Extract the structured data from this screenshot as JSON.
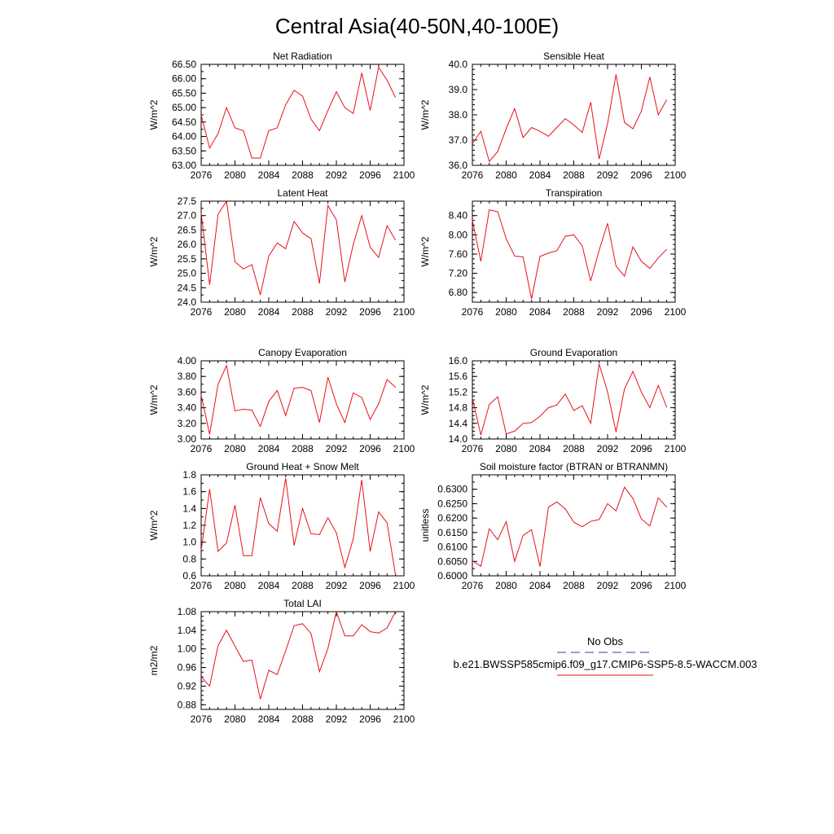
{
  "title": "Central Asia(40-50N,40-100E)",
  "legend": {
    "obs_label": "No Obs",
    "model_label": "b.e21.BWSSP585cmip6.f09_g17.CMIP6-SSP5-8.5-WACCM.003",
    "obs_color": "#3a3aa0",
    "model_color": "#e8101a"
  },
  "chart_data": [
    {
      "type": "line",
      "title": "Net Radiation",
      "ylabel": "W/m^2",
      "xlim": [
        2076,
        2100
      ],
      "ylim": [
        63.0,
        66.5
      ],
      "x_ticks": [
        2076,
        2080,
        2084,
        2088,
        2092,
        2096,
        2100
      ],
      "y_ticks": [
        63.0,
        63.5,
        64.0,
        64.5,
        65.0,
        65.5,
        66.0,
        66.5
      ],
      "y_tick_labels": [
        "63.00",
        "63.50",
        "64.00",
        "64.50",
        "65.00",
        "65.50",
        "66.00",
        "66.50"
      ],
      "y_minor_step": 0.25,
      "x": [
        2076,
        2077,
        2078,
        2079,
        2080,
        2081,
        2082,
        2083,
        2084,
        2085,
        2086,
        2087,
        2088,
        2089,
        2090,
        2091,
        2092,
        2093,
        2094,
        2095,
        2096,
        2097,
        2098,
        2099
      ],
      "values": [
        64.75,
        63.6,
        64.1,
        65.0,
        64.3,
        64.2,
        63.25,
        63.25,
        64.2,
        64.3,
        65.1,
        65.6,
        65.4,
        64.6,
        64.2,
        64.9,
        65.55,
        65.0,
        64.8,
        66.2,
        64.9,
        66.4,
        65.95,
        65.35
      ]
    },
    {
      "type": "line",
      "title": "Sensible Heat",
      "ylabel": "W/m^2",
      "xlim": [
        2076,
        2100
      ],
      "ylim": [
        36.0,
        40.0
      ],
      "x_ticks": [
        2076,
        2080,
        2084,
        2088,
        2092,
        2096,
        2100
      ],
      "y_ticks": [
        36.0,
        37.0,
        38.0,
        39.0,
        40.0
      ],
      "y_tick_labels": [
        "36.0",
        "37.0",
        "38.0",
        "39.0",
        "40.0"
      ],
      "y_minor_step": 0.2,
      "x": [
        2076,
        2077,
        2078,
        2079,
        2080,
        2081,
        2082,
        2083,
        2084,
        2085,
        2086,
        2087,
        2088,
        2089,
        2090,
        2091,
        2092,
        2093,
        2094,
        2095,
        2096,
        2097,
        2098,
        2099
      ],
      "values": [
        36.85,
        37.35,
        36.15,
        36.55,
        37.45,
        38.25,
        37.1,
        37.5,
        37.35,
        37.15,
        37.5,
        37.85,
        37.6,
        37.3,
        38.5,
        36.25,
        37.65,
        39.6,
        37.7,
        37.45,
        38.15,
        39.5,
        38.0,
        38.6
      ]
    },
    {
      "type": "line",
      "title": "Latent Heat",
      "ylabel": "W/m^2",
      "xlim": [
        2076,
        2100
      ],
      "ylim": [
        24.0,
        27.5
      ],
      "x_ticks": [
        2076,
        2080,
        2084,
        2088,
        2092,
        2096,
        2100
      ],
      "y_ticks": [
        24.0,
        24.5,
        25.0,
        25.5,
        26.0,
        26.5,
        27.0,
        27.5
      ],
      "y_tick_labels": [
        "24.0",
        "24.5",
        "25.0",
        "25.5",
        "26.0",
        "26.5",
        "27.0",
        "27.5"
      ],
      "y_minor_step": 0.25,
      "x": [
        2076,
        2077,
        2078,
        2079,
        2080,
        2081,
        2082,
        2083,
        2084,
        2085,
        2086,
        2087,
        2088,
        2089,
        2090,
        2091,
        2092,
        2093,
        2094,
        2095,
        2096,
        2097,
        2098,
        2099
      ],
      "values": [
        27.1,
        24.6,
        27.05,
        27.5,
        25.4,
        25.15,
        25.3,
        24.25,
        25.6,
        26.05,
        25.85,
        26.8,
        26.4,
        26.2,
        24.65,
        27.35,
        26.85,
        24.7,
        26.0,
        27.0,
        25.9,
        25.55,
        26.65,
        26.15
      ]
    },
    {
      "type": "line",
      "title": "Transpiration",
      "ylabel": "W/m^2",
      "xlim": [
        2076,
        2100
      ],
      "ylim": [
        6.6,
        8.7
      ],
      "x_ticks": [
        2076,
        2080,
        2084,
        2088,
        2092,
        2096,
        2100
      ],
      "y_ticks": [
        6.8,
        7.2,
        7.6,
        8.0,
        8.4
      ],
      "y_tick_labels": [
        "6.80",
        "7.20",
        "7.60",
        "8.00",
        "8.40"
      ],
      "y_minor_step": 0.1,
      "x": [
        2076,
        2077,
        2078,
        2079,
        2080,
        2081,
        2082,
        2083,
        2084,
        2085,
        2086,
        2087,
        2088,
        2089,
        2090,
        2091,
        2092,
        2093,
        2094,
        2095,
        2096,
        2097,
        2098,
        2099
      ],
      "values": [
        8.3,
        7.45,
        8.52,
        8.48,
        7.92,
        7.56,
        7.54,
        6.67,
        7.55,
        7.62,
        7.67,
        7.97,
        8.0,
        7.77,
        7.04,
        7.68,
        8.24,
        7.35,
        7.14,
        7.75,
        7.45,
        7.3,
        7.52,
        7.7
      ]
    },
    {
      "type": "line",
      "title": "Canopy Evaporation",
      "ylabel": "W/m^2",
      "xlim": [
        2076,
        2100
      ],
      "ylim": [
        3.0,
        4.0
      ],
      "x_ticks": [
        2076,
        2080,
        2084,
        2088,
        2092,
        2096,
        2100
      ],
      "y_ticks": [
        3.0,
        3.2,
        3.4,
        3.6,
        3.8,
        4.0
      ],
      "y_tick_labels": [
        "3.00",
        "3.20",
        "3.40",
        "3.60",
        "3.80",
        "4.00"
      ],
      "y_minor_step": 0.1,
      "x": [
        2076,
        2077,
        2078,
        2079,
        2080,
        2081,
        2082,
        2083,
        2084,
        2085,
        2086,
        2087,
        2088,
        2089,
        2090,
        2091,
        2092,
        2093,
        2094,
        2095,
        2096,
        2097,
        2098,
        2099
      ],
      "values": [
        3.56,
        3.06,
        3.7,
        3.94,
        3.36,
        3.38,
        3.37,
        3.16,
        3.48,
        3.62,
        3.3,
        3.65,
        3.66,
        3.62,
        3.21,
        3.79,
        3.45,
        3.21,
        3.59,
        3.53,
        3.25,
        3.45,
        3.76,
        3.66
      ]
    },
    {
      "type": "line",
      "title": "Ground Evaporation",
      "ylabel": "W/m^2",
      "xlim": [
        2076,
        2100
      ],
      "ylim": [
        14.0,
        16.0
      ],
      "x_ticks": [
        2076,
        2080,
        2084,
        2088,
        2092,
        2096,
        2100
      ],
      "y_ticks": [
        14.0,
        14.4,
        14.8,
        15.2,
        15.6,
        16.0
      ],
      "y_tick_labels": [
        "14.0",
        "14.4",
        "14.8",
        "15.2",
        "15.6",
        "16.0"
      ],
      "y_minor_step": 0.1,
      "x": [
        2076,
        2077,
        2078,
        2079,
        2080,
        2081,
        2082,
        2083,
        2084,
        2085,
        2086,
        2087,
        2088,
        2089,
        2090,
        2091,
        2092,
        2093,
        2094,
        2095,
        2096,
        2097,
        2098,
        2099
      ],
      "values": [
        15.05,
        14.1,
        14.88,
        15.08,
        14.13,
        14.2,
        14.4,
        14.42,
        14.58,
        14.8,
        14.87,
        15.15,
        14.73,
        14.85,
        14.4,
        15.92,
        15.2,
        14.18,
        15.28,
        15.73,
        15.2,
        14.8,
        15.37,
        14.81
      ]
    },
    {
      "type": "line",
      "title": "Ground Heat + Snow Melt",
      "ylabel": "W/m^2",
      "xlim": [
        2076,
        2100
      ],
      "ylim": [
        0.6,
        1.8
      ],
      "x_ticks": [
        2076,
        2080,
        2084,
        2088,
        2092,
        2096,
        2100
      ],
      "y_ticks": [
        0.6,
        0.8,
        1.0,
        1.2,
        1.4,
        1.6,
        1.8
      ],
      "y_tick_labels": [
        "0.6",
        "0.8",
        "1.0",
        "1.2",
        "1.4",
        "1.6",
        "1.8"
      ],
      "y_minor_step": 0.1,
      "x": [
        2076,
        2077,
        2078,
        2079,
        2080,
        2081,
        2082,
        2083,
        2084,
        2085,
        2086,
        2087,
        2088,
        2089,
        2090,
        2091,
        2092,
        2093,
        2094,
        2095,
        2096,
        2097,
        2098,
        2099
      ],
      "values": [
        0.9,
        1.63,
        0.89,
        0.99,
        1.44,
        0.84,
        0.84,
        1.53,
        1.22,
        1.13,
        1.76,
        0.96,
        1.4,
        1.1,
        1.09,
        1.29,
        1.11,
        0.7,
        1.04,
        1.74,
        0.89,
        1.36,
        1.23,
        0.61
      ]
    },
    {
      "type": "line",
      "title": "Soil moisture factor (BTRAN or BTRANMN)",
      "ylabel": "unitless",
      "xlim": [
        2076,
        2100
      ],
      "ylim": [
        0.6,
        0.635
      ],
      "x_ticks": [
        2076,
        2080,
        2084,
        2088,
        2092,
        2096,
        2100
      ],
      "y_ticks": [
        0.6,
        0.605,
        0.61,
        0.615,
        0.62,
        0.625,
        0.63
      ],
      "y_tick_labels": [
        "0.6000",
        "0.6050",
        "0.6100",
        "0.6150",
        "0.6200",
        "0.6250",
        "0.6300"
      ],
      "y_minor_step": 0.0025,
      "x": [
        2076,
        2077,
        2078,
        2079,
        2080,
        2081,
        2082,
        2083,
        2084,
        2085,
        2086,
        2087,
        2088,
        2089,
        2090,
        2091,
        2092,
        2093,
        2094,
        2095,
        2096,
        2097,
        2098,
        2099
      ],
      "values": [
        0.6052,
        0.6033,
        0.6163,
        0.6125,
        0.6188,
        0.605,
        0.614,
        0.616,
        0.6032,
        0.6238,
        0.6256,
        0.6232,
        0.6186,
        0.617,
        0.6189,
        0.6195,
        0.625,
        0.6225,
        0.6307,
        0.6268,
        0.6197,
        0.6173,
        0.627,
        0.6238
      ]
    },
    {
      "type": "line",
      "title": "Total LAI",
      "ylabel": "m2/m2",
      "xlim": [
        2076,
        2100
      ],
      "ylim": [
        0.87,
        1.08
      ],
      "x_ticks": [
        2076,
        2080,
        2084,
        2088,
        2092,
        2096,
        2100
      ],
      "y_ticks": [
        0.88,
        0.92,
        0.96,
        1.0,
        1.04,
        1.08
      ],
      "y_tick_labels": [
        "0.88",
        "0.92",
        "0.96",
        "1.00",
        "1.04",
        "1.08"
      ],
      "y_minor_step": 0.01,
      "x": [
        2076,
        2077,
        2078,
        2079,
        2080,
        2081,
        2082,
        2083,
        2084,
        2085,
        2086,
        2087,
        2088,
        2089,
        2090,
        2091,
        2092,
        2093,
        2094,
        2095,
        2096,
        2097,
        2098,
        2099
      ],
      "values": [
        0.94,
        0.92,
        1.007,
        1.04,
        1.006,
        0.973,
        0.976,
        0.892,
        0.954,
        0.945,
        0.996,
        1.05,
        1.054,
        1.033,
        0.951,
        1.001,
        1.08,
        1.028,
        1.028,
        1.052,
        1.037,
        1.034,
        1.045,
        1.08
      ]
    }
  ]
}
